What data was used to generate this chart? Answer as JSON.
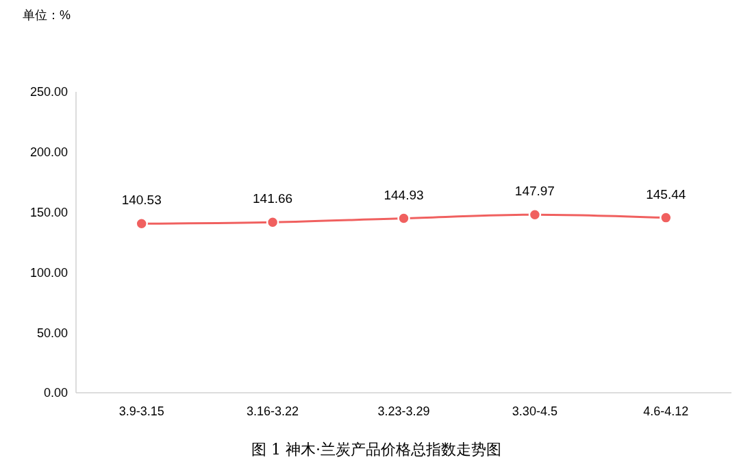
{
  "chart_data": {
    "type": "line",
    "title": "图 1  神木·兰炭产品价格总指数走势图",
    "annotations": [
      "单位：%"
    ],
    "categories": [
      "3.9-3.15",
      "3.16-3.22",
      "3.23-3.29",
      "3.30-4.5",
      "4.6-4.12"
    ],
    "series": [
      {
        "color": "#f0605f",
        "values": [
          140.53,
          141.66,
          144.93,
          147.97,
          145.44
        ]
      }
    ],
    "ylim": [
      0,
      250
    ],
    "yticks": [
      {
        "value": 0,
        "label": "0.00"
      },
      {
        "value": 50,
        "label": "50.00"
      },
      {
        "value": 100,
        "label": "100.00"
      },
      {
        "value": 150,
        "label": "150.00"
      },
      {
        "value": 200,
        "label": "200.00"
      },
      {
        "value": 250,
        "label": "250.00"
      }
    ],
    "data_labels": true,
    "marker": "circle",
    "line_style": "solid",
    "grid": false
  }
}
